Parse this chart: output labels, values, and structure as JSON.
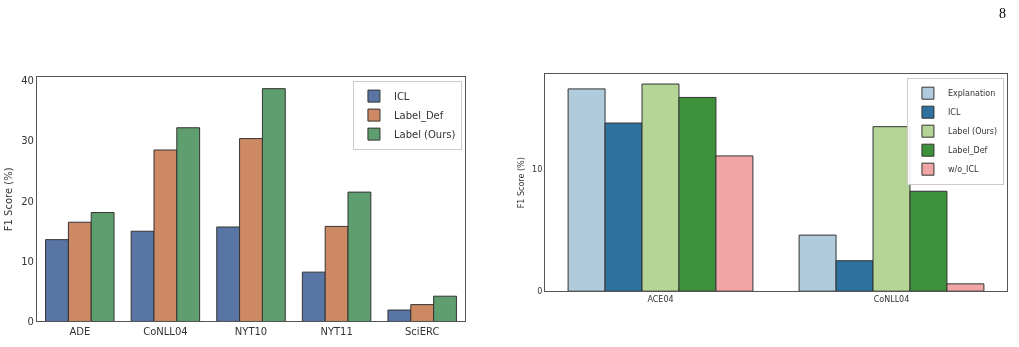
{
  "chart_data": [
    {
      "type": "bar",
      "ylabel": "F1 Score (%)",
      "categories": [
        "ADE",
        "CoNLL04",
        "NYT10",
        "NYT11",
        "SciERC"
      ],
      "series": [
        {
          "name": "ICL",
          "color": "#5975a4",
          "values": [
            13.6,
            15.0,
            15.7,
            8.2,
            1.9
          ]
        },
        {
          "name": "Label_Def",
          "color": "#cc8963",
          "values": [
            16.5,
            28.5,
            30.4,
            15.8,
            2.8
          ]
        },
        {
          "name": "Label (Ours)",
          "color": "#5f9e6e",
          "values": [
            18.1,
            32.2,
            38.7,
            21.5,
            4.2
          ]
        }
      ],
      "ylim": [
        0,
        40.6
      ],
      "yticks": [
        0,
        10,
        20,
        30,
        40
      ],
      "legend": "top right"
    },
    {
      "type": "bar",
      "ylabel": "F1 Score (%)",
      "categories": [
        "ACE04",
        "CoNLL04"
      ],
      "series": [
        {
          "name": "Explanation",
          "color": "#afcbdc",
          "values": [
            16.6,
            4.6
          ]
        },
        {
          "name": "ICL",
          "color": "#2f72a0",
          "values": [
            13.8,
            2.5
          ]
        },
        {
          "name": "Label (Ours)",
          "color": "#b4d595",
          "values": [
            17.0,
            13.5
          ]
        },
        {
          "name": "Label_Def",
          "color": "#3e913b",
          "values": [
            15.9,
            8.2
          ]
        },
        {
          "name": "w/o_ICL",
          "color": "#f0a6a5",
          "values": [
            11.1,
            0.6
          ]
        }
      ],
      "ylim": [
        0,
        17.8
      ],
      "yticks": [
        0,
        10
      ],
      "legend": "top right",
      "annotations": [
        "8"
      ]
    }
  ]
}
